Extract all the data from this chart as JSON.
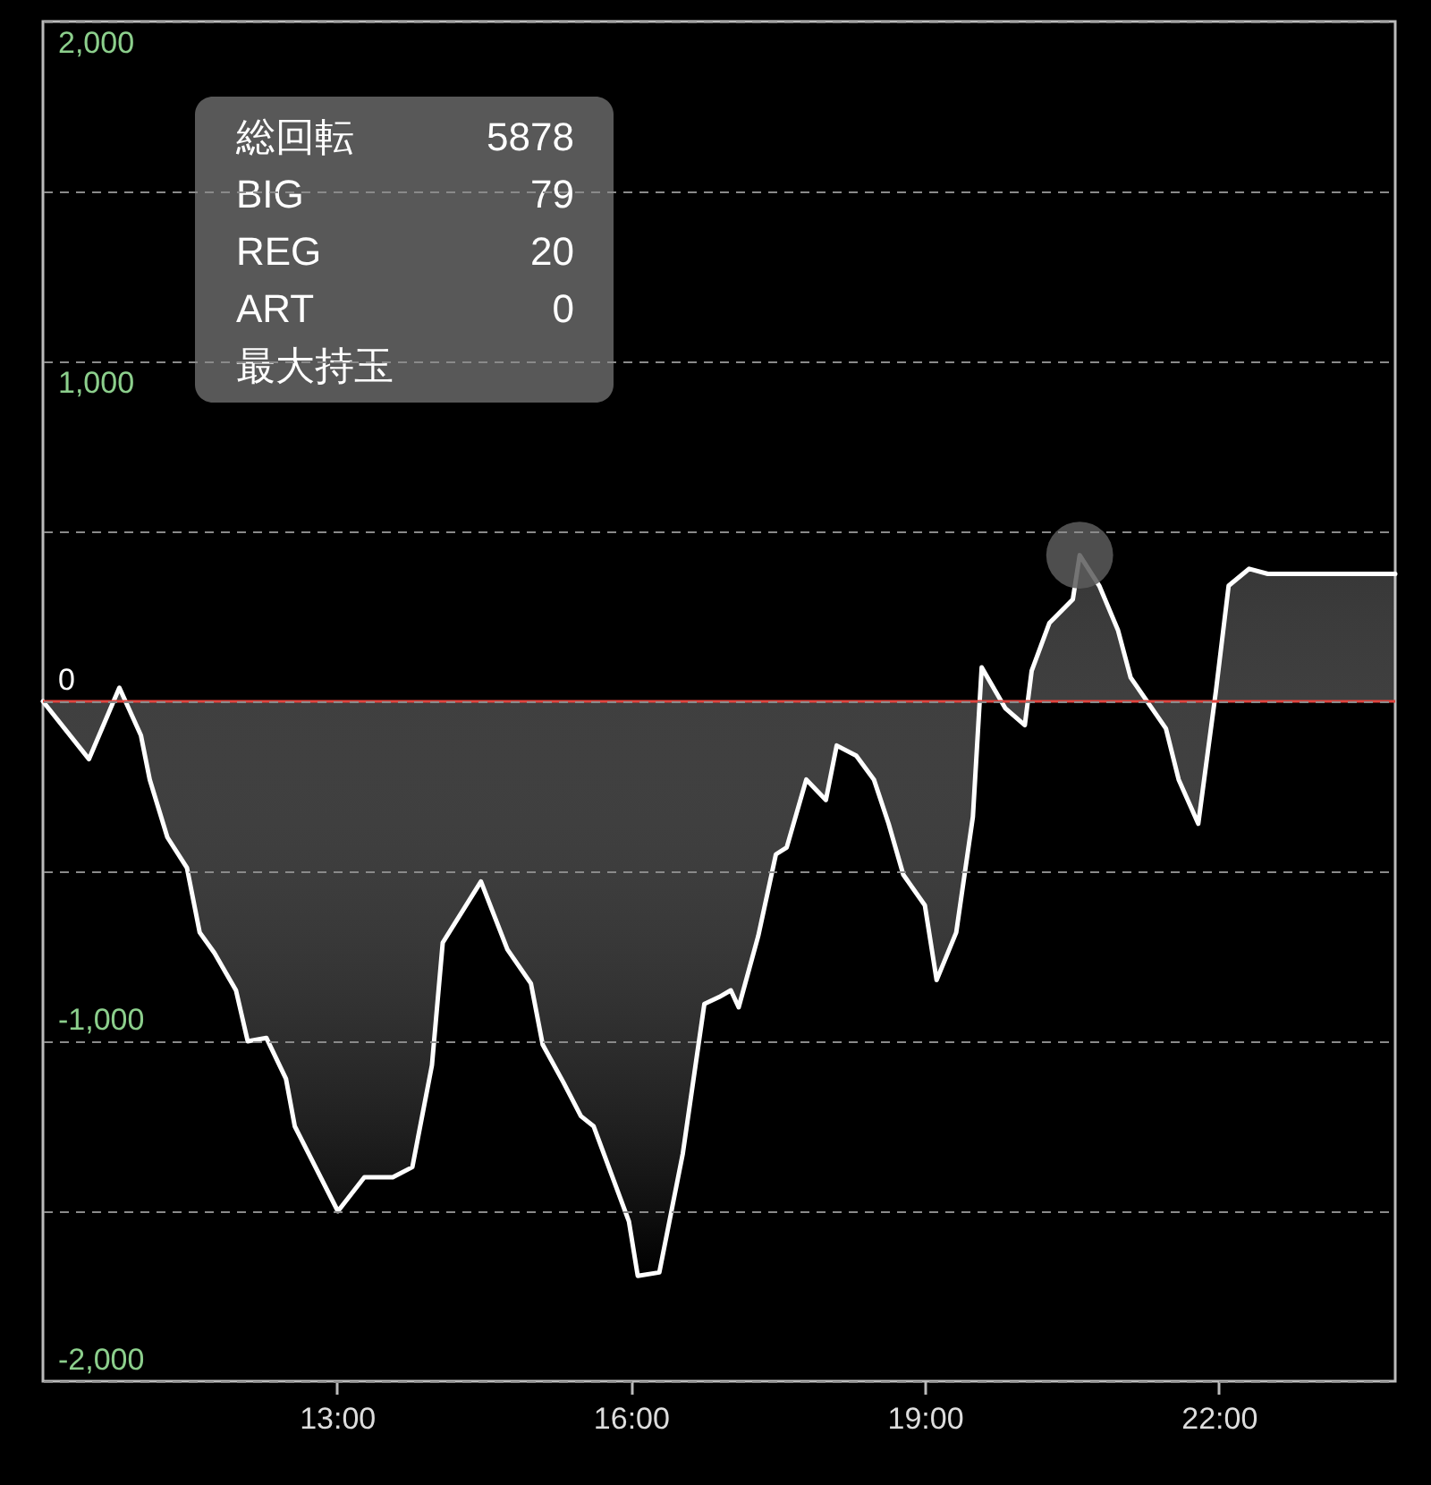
{
  "chart_data": {
    "type": "area",
    "annotations": [
      "総回転 5878",
      "BIG 79",
      "REG 20",
      "ART 0",
      "最大持玉"
    ],
    "xlim": [
      10,
      23.8
    ],
    "xticks": [
      {
        "value": 13,
        "label": "13:00"
      },
      {
        "value": 16,
        "label": "16:00"
      },
      {
        "value": 19,
        "label": "19:00"
      },
      {
        "value": 22,
        "label": "22:00"
      }
    ],
    "ylim": [
      -2000,
      2000
    ],
    "yticks": [
      {
        "value": -2000,
        "label": "-2,000"
      },
      {
        "value": -1500,
        "label": null
      },
      {
        "value": -1000,
        "label": "-1,000"
      },
      {
        "value": -500,
        "label": null
      },
      0,
      {
        "value": 500,
        "label": null
      },
      {
        "value": 1000,
        "label": "1,000"
      },
      {
        "value": 1500,
        "label": null
      },
      {
        "value": 2000,
        "label": "2,000"
      }
    ],
    "grid": "y",
    "ref_lines": [
      {
        "axis": "y",
        "value": 0,
        "color": "#e0443e"
      }
    ],
    "series": [
      {
        "color": "#ffffff",
        "x": [
          10,
          10.47,
          10.78,
          11.0,
          11.09,
          11.27,
          11.47,
          11.6,
          11.75,
          11.97,
          12.09,
          12.28,
          12.48,
          12.57,
          13.01,
          13.28,
          13.57,
          13.77,
          13.97,
          14.08,
          14.47,
          14.74,
          14.98,
          15.1,
          15.31,
          15.49,
          15.62,
          15.98,
          16.07,
          16.29,
          16.53,
          16.75,
          16.9,
          17.02,
          17.1,
          17.3,
          17.48,
          17.59,
          17.79,
          17.99,
          18.1,
          18.3,
          18.48,
          18.63,
          18.78,
          19.0,
          19.12,
          19.32,
          19.49,
          19.58,
          19.82,
          20.02,
          20.09,
          20.27,
          20.51,
          20.58,
          20.78,
          20.97,
          21.1,
          21.46,
          21.59,
          21.79,
          21.97,
          22.1,
          22.31,
          22.5,
          23.8
        ],
        "values": [
          0,
          -170,
          40,
          -100,
          -230,
          -400,
          -490,
          -680,
          -740,
          -850,
          -1000,
          -990,
          -1110,
          -1250,
          -1500,
          -1400,
          -1400,
          -1370,
          -1070,
          -710,
          -530,
          -730,
          -830,
          -1010,
          -1120,
          -1220,
          -1250,
          -1530,
          -1690,
          -1680,
          -1330,
          -890,
          -870,
          -850,
          -900,
          -690,
          -450,
          -430,
          -230,
          -290,
          -130,
          -160,
          -230,
          -360,
          -510,
          -600,
          -820,
          -680,
          -340,
          100,
          -20,
          -70,
          90,
          230,
          300,
          430,
          340,
          210,
          70,
          -80,
          -230,
          -360,
          30,
          340,
          390,
          375,
          375
        ]
      },
      {
        "type": "scatter",
        "color": "#5c5c5c",
        "marker": "circle",
        "x": [
          20.58
        ],
        "values": [
          430
        ]
      }
    ]
  }
}
